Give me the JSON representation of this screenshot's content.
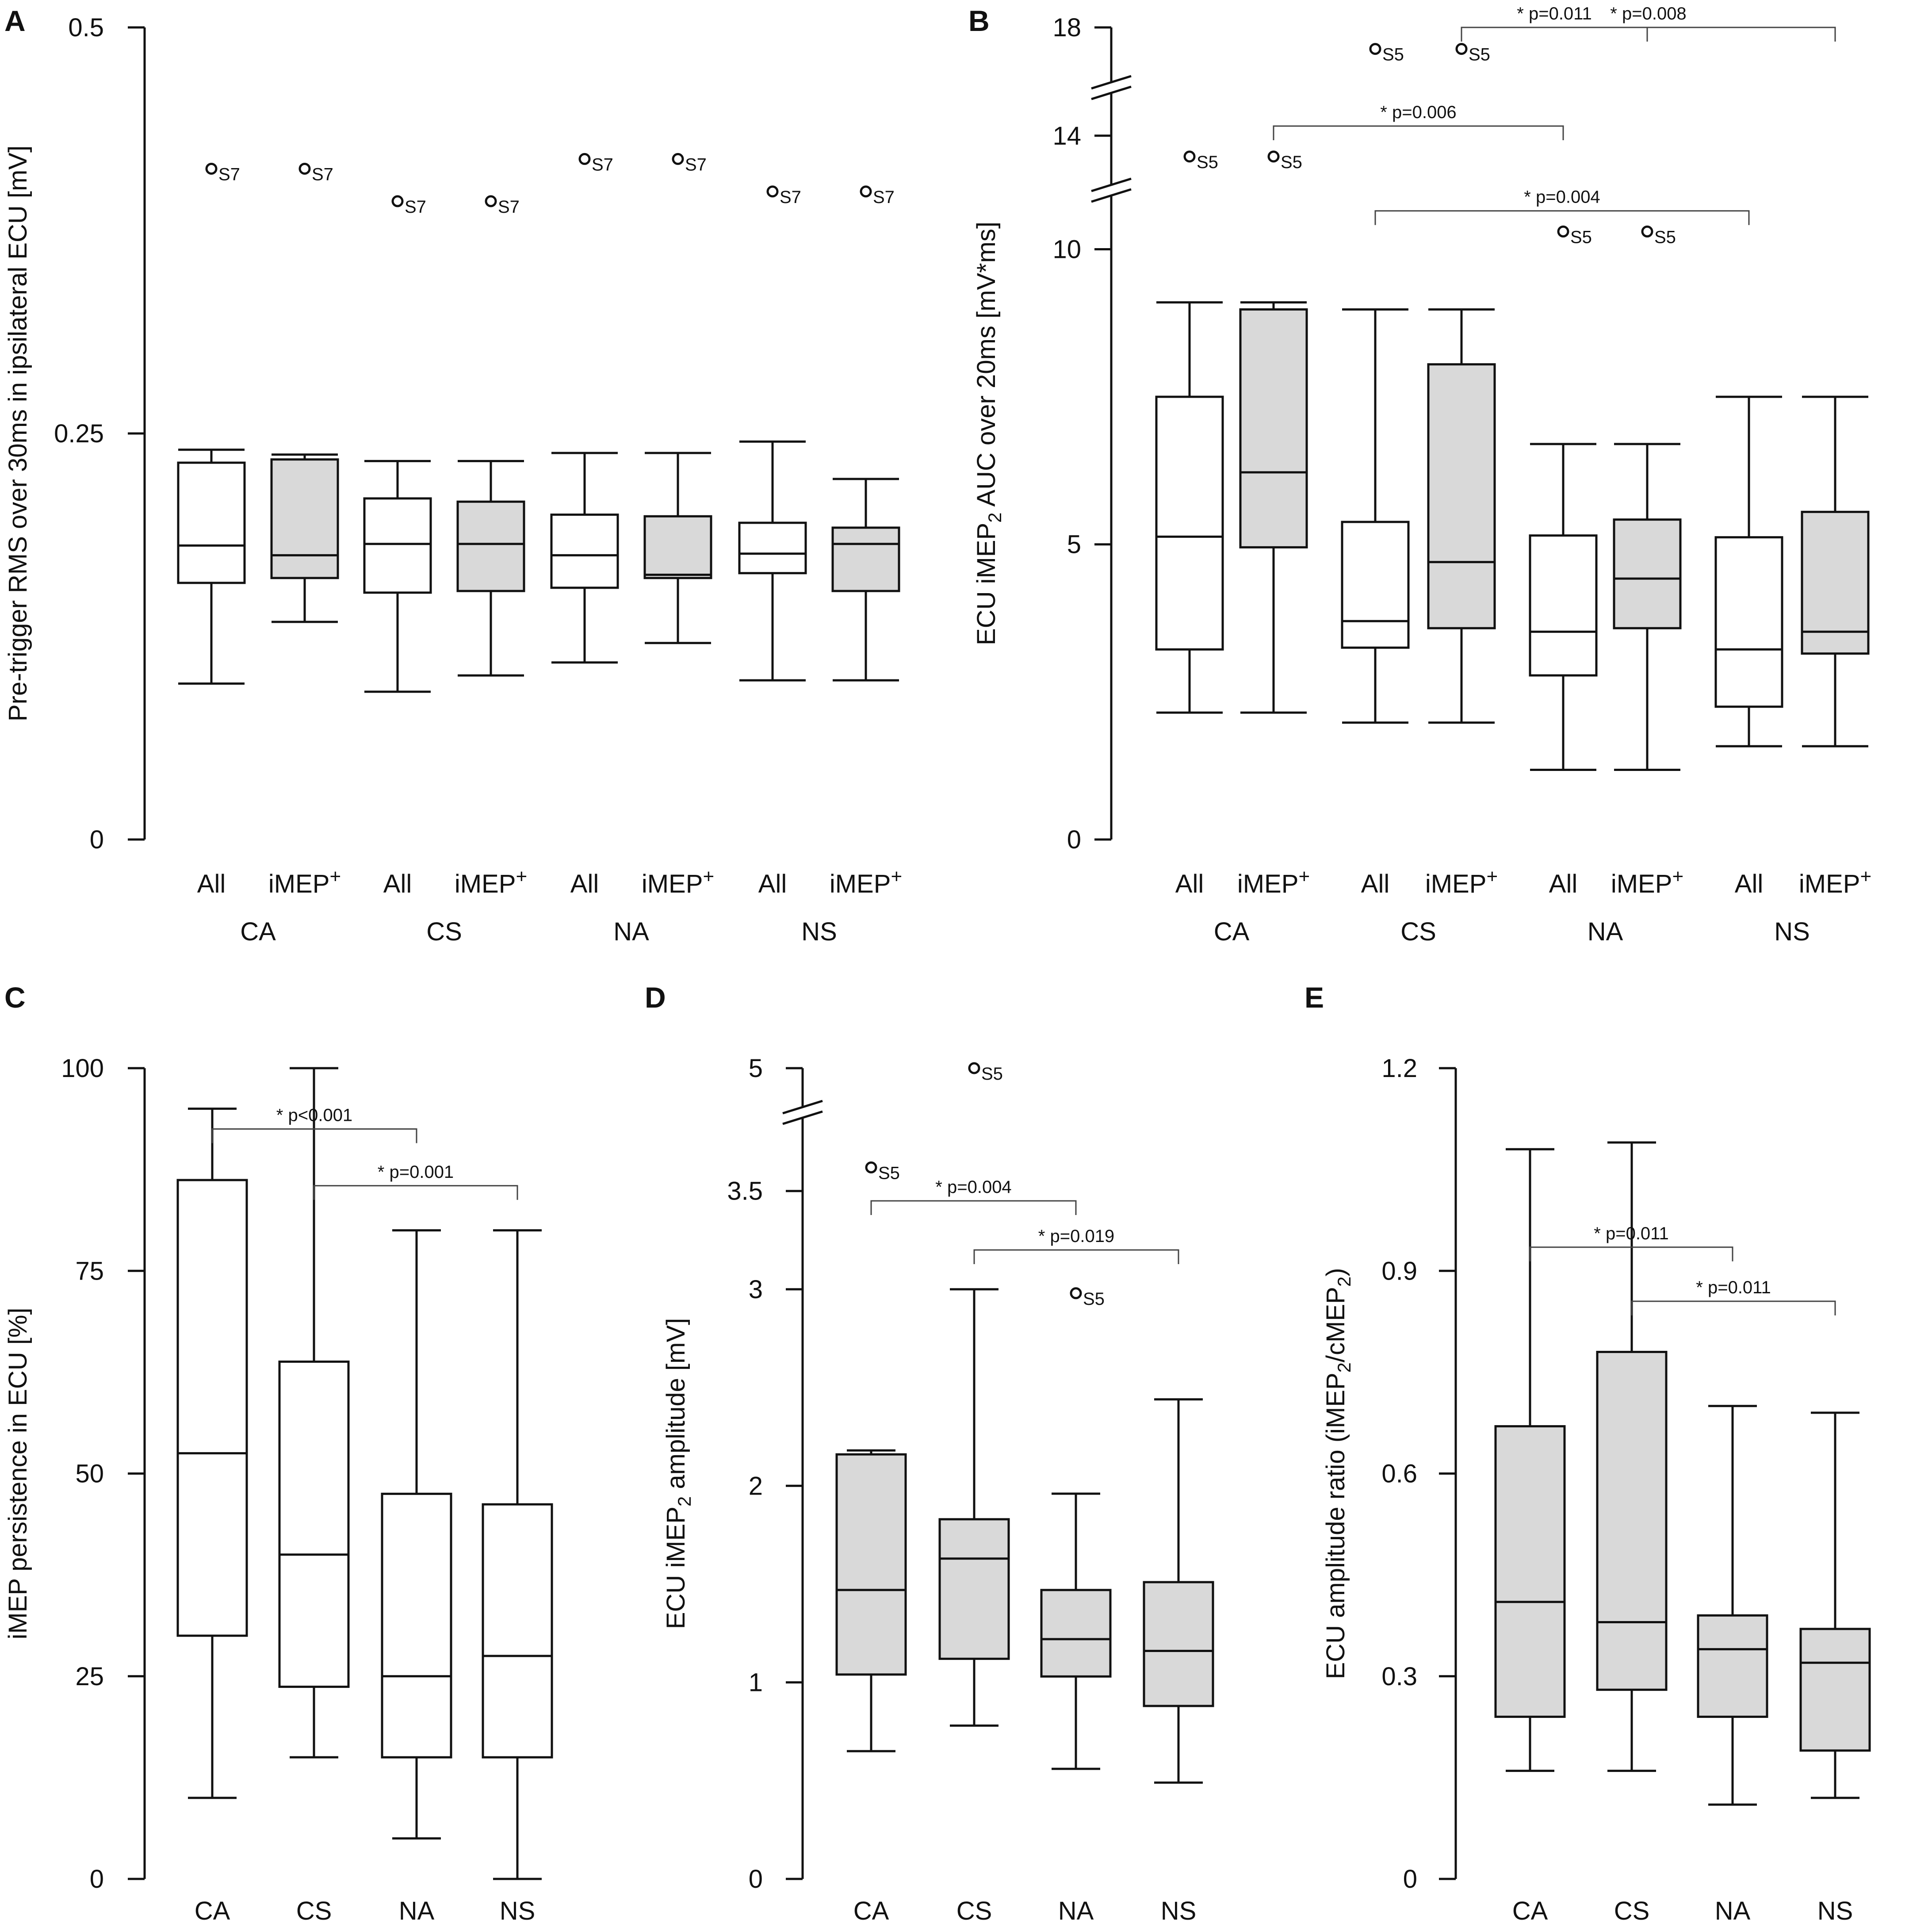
{
  "chart_data": [
    {
      "id": "A",
      "type": "boxplot",
      "panel_label": "A",
      "ylabel": "Pre-trigger RMS over 30ms in ipsilateral ECU [mV]",
      "ylim": [
        0,
        0.5
      ],
      "yticks": [
        {
          "v": 0,
          "label": "0"
        },
        {
          "v": 0.25,
          "label": "0.25"
        },
        {
          "v": 0.5,
          "label": "0.5"
        }
      ],
      "groups": [
        "CA",
        "CS",
        "NA",
        "NS"
      ],
      "subcategories": [
        "All",
        "iMEP+"
      ],
      "boxes": [
        {
          "group": "CA",
          "sub": "All",
          "fill": "#ffffff",
          "min": 0.096,
          "q1": 0.158,
          "median": 0.181,
          "q3": 0.232,
          "max": 0.24
        },
        {
          "group": "CA",
          "sub": "iMEP+",
          "fill": "#d9d9d9",
          "min": 0.134,
          "q1": 0.161,
          "median": 0.175,
          "q3": 0.234,
          "max": 0.237
        },
        {
          "group": "CS",
          "sub": "All",
          "fill": "#ffffff",
          "min": 0.091,
          "q1": 0.152,
          "median": 0.182,
          "q3": 0.21,
          "max": 0.233
        },
        {
          "group": "CS",
          "sub": "iMEP+",
          "fill": "#d9d9d9",
          "min": 0.101,
          "q1": 0.153,
          "median": 0.182,
          "q3": 0.208,
          "max": 0.233
        },
        {
          "group": "NA",
          "sub": "All",
          "fill": "#ffffff",
          "min": 0.109,
          "q1": 0.155,
          "median": 0.175,
          "q3": 0.2,
          "max": 0.238
        },
        {
          "group": "NA",
          "sub": "iMEP+",
          "fill": "#d9d9d9",
          "min": 0.121,
          "q1": 0.161,
          "median": 0.163,
          "q3": 0.199,
          "max": 0.238
        },
        {
          "group": "NS",
          "sub": "All",
          "fill": "#ffffff",
          "min": 0.098,
          "q1": 0.164,
          "median": 0.176,
          "q3": 0.195,
          "max": 0.245
        },
        {
          "group": "NS",
          "sub": "iMEP+",
          "fill": "#d9d9d9",
          "min": 0.098,
          "q1": 0.153,
          "median": 0.182,
          "q3": 0.192,
          "max": 0.222
        }
      ],
      "outliers": [
        {
          "group": "CA",
          "sub": "All",
          "value": 0.413,
          "label": "S7"
        },
        {
          "group": "CA",
          "sub": "iMEP+",
          "value": 0.413,
          "label": "S7"
        },
        {
          "group": "CS",
          "sub": "All",
          "value": 0.393,
          "label": "S7"
        },
        {
          "group": "CS",
          "sub": "iMEP+",
          "value": 0.393,
          "label": "S7"
        },
        {
          "group": "NA",
          "sub": "All",
          "value": 0.419,
          "label": "S7"
        },
        {
          "group": "NA",
          "sub": "iMEP+",
          "value": 0.419,
          "label": "S7"
        },
        {
          "group": "NS",
          "sub": "All",
          "value": 0.399,
          "label": "S7"
        },
        {
          "group": "NS",
          "sub": "iMEP+",
          "value": 0.399,
          "label": "S7"
        }
      ],
      "brackets": []
    },
    {
      "id": "B",
      "type": "boxplot",
      "panel_label": "B",
      "ylabel_parts": [
        "ECU iMEP",
        "2",
        " AUC over 20ms [mV*ms]"
      ],
      "ylim": [
        0,
        18
      ],
      "axis_breaks": [
        11,
        15.5
      ],
      "yticks": [
        {
          "v": 0,
          "label": "0"
        },
        {
          "v": 5,
          "label": "5"
        },
        {
          "v": 10,
          "label": "10"
        },
        {
          "v": 14,
          "label": "14"
        },
        {
          "v": 18,
          "label": "18"
        }
      ],
      "groups": [
        "CA",
        "CS",
        "NA",
        "NS"
      ],
      "subcategories": [
        "All",
        "iMEP+"
      ],
      "boxes": [
        {
          "group": "CA",
          "sub": "All",
          "fill": "#ffffff",
          "min": 2.15,
          "q1": 3.22,
          "median": 5.13,
          "q3": 7.5,
          "max": 9.1
        },
        {
          "group": "CA",
          "sub": "iMEP+",
          "fill": "#d9d9d9",
          "min": 2.15,
          "q1": 4.95,
          "median": 6.22,
          "q3": 8.98,
          "max": 9.1
        },
        {
          "group": "CS",
          "sub": "All",
          "fill": "#ffffff",
          "min": 1.98,
          "q1": 3.25,
          "median": 3.7,
          "q3": 5.38,
          "max": 8.98
        },
        {
          "group": "CS",
          "sub": "iMEP+",
          "fill": "#d9d9d9",
          "min": 1.98,
          "q1": 3.58,
          "median": 4.7,
          "q3": 8.05,
          "max": 8.98
        },
        {
          "group": "NA",
          "sub": "All",
          "fill": "#ffffff",
          "min": 1.18,
          "q1": 2.78,
          "median": 3.52,
          "q3": 5.15,
          "max": 6.7
        },
        {
          "group": "NA",
          "sub": "iMEP+",
          "fill": "#d9d9d9",
          "min": 1.18,
          "q1": 3.58,
          "median": 4.42,
          "q3": 5.42,
          "max": 6.7
        },
        {
          "group": "NS",
          "sub": "All",
          "fill": "#ffffff",
          "min": 1.58,
          "q1": 2.25,
          "median": 3.22,
          "q3": 5.12,
          "max": 7.5
        },
        {
          "group": "NS",
          "sub": "iMEP+",
          "fill": "#d9d9d9",
          "min": 1.58,
          "q1": 3.15,
          "median": 3.52,
          "q3": 5.55,
          "max": 7.5
        }
      ],
      "outliers": [
        {
          "group": "CA",
          "sub": "All",
          "value": 13.35,
          "label": "S5"
        },
        {
          "group": "CA",
          "sub": "iMEP+",
          "value": 13.35,
          "label": "S5"
        },
        {
          "group": "CS",
          "sub": "All",
          "value": 17.5,
          "label": "S5"
        },
        {
          "group": "CS",
          "sub": "iMEP+",
          "value": 17.5,
          "label": "S5"
        },
        {
          "group": "NA",
          "sub": "All",
          "value": 10.3,
          "label": "S5"
        },
        {
          "group": "NA",
          "sub": "iMEP+",
          "value": 10.3,
          "label": "S5"
        },
        {
          "group": "NS",
          "sub": "All",
          "value": null,
          "label": null
        },
        {
          "group": "NS",
          "sub": "iMEP+",
          "value": null,
          "label": null
        }
      ],
      "brackets": [
        {
          "from": "CS.iMEP+",
          "to": "NA.iMEP+",
          "label": "* p=0.011",
          "level": 16.05
        },
        {
          "from": "CA.iMEP+",
          "to": "NA.All",
          "label": "* p=0.006",
          "level": 14.3
        },
        {
          "from": "CS.iMEP+",
          "to": "NS.iMEP+",
          "label": "* p=0.008",
          "level": 11.1
        },
        {
          "from": "CS.All",
          "to": "NS.All",
          "label": "* p=0.004",
          "level": 10.65
        }
      ]
    },
    {
      "id": "C",
      "type": "boxplot",
      "panel_label": "C",
      "ylabel": "iMEP persistence in ECU [%]",
      "ylim": [
        0,
        100
      ],
      "yticks": [
        {
          "v": 0,
          "label": "0"
        },
        {
          "v": 25,
          "label": "25"
        },
        {
          "v": 50,
          "label": "50"
        },
        {
          "v": 75,
          "label": "75"
        },
        {
          "v": 100,
          "label": "100"
        }
      ],
      "groups": [
        "CA",
        "CS",
        "NA",
        "NS"
      ],
      "boxes": [
        {
          "group": "CA",
          "fill": "#ffffff",
          "min": 10,
          "q1": 30,
          "median": 52.5,
          "q3": 86.2,
          "max": 95
        },
        {
          "group": "CS",
          "fill": "#ffffff",
          "min": 15,
          "q1": 23.7,
          "median": 40,
          "q3": 63.8,
          "max": 100
        },
        {
          "group": "NA",
          "fill": "#ffffff",
          "min": 5,
          "q1": 15,
          "median": 25,
          "q3": 47.5,
          "max": 80
        },
        {
          "group": "NS",
          "fill": "#ffffff",
          "min": 0,
          "q1": 15,
          "median": 27.5,
          "q3": 46.2,
          "max": 80
        }
      ],
      "outliers": [],
      "brackets": [
        {
          "from": "CA",
          "to": "NA",
          "label": "* p<0.001",
          "level": 92.5
        },
        {
          "from": "CS",
          "to": "NS",
          "label": "* p=0.001",
          "level": 85.5
        }
      ]
    },
    {
      "id": "D",
      "type": "boxplot",
      "panel_label": "D",
      "ylabel_parts": [
        "ECU iMEP",
        "2",
        " amplitude [mV]"
      ],
      "ylim": [
        0,
        5
      ],
      "axis_breaks": [
        3.95
      ],
      "yticks": [
        {
          "v": 0,
          "label": "0"
        },
        {
          "v": 1,
          "label": "1"
        },
        {
          "v": 2,
          "label": "2"
        },
        {
          "v": 3,
          "label": "3"
        },
        {
          "v": 3.5,
          "label": "3.5"
        },
        {
          "v": 5,
          "label": "5"
        }
      ],
      "groups": [
        "CA",
        "CS",
        "NA",
        "NS"
      ],
      "boxes": [
        {
          "group": "CA",
          "fill": "#d9d9d9",
          "min": 0.65,
          "q1": 1.04,
          "median": 1.47,
          "q3": 2.16,
          "max": 2.18
        },
        {
          "group": "CS",
          "fill": "#d9d9d9",
          "min": 0.78,
          "q1": 1.12,
          "median": 1.63,
          "q3": 1.83,
          "max": 3.0
        },
        {
          "group": "NA",
          "fill": "#d9d9d9",
          "min": 0.56,
          "q1": 1.03,
          "median": 1.22,
          "q3": 1.47,
          "max": 1.96
        },
        {
          "group": "NS",
          "fill": "#d9d9d9",
          "min": 0.49,
          "q1": 0.88,
          "median": 1.16,
          "q3": 1.51,
          "max": 2.44
        }
      ],
      "outliers": [
        {
          "group": "CA",
          "value": 3.62,
          "label": "S5"
        },
        {
          "group": "CS",
          "value": 5.0,
          "label": "S5"
        },
        {
          "group": "NA",
          "value": 2.98,
          "label": "S5"
        }
      ],
      "brackets": [
        {
          "from": "CA",
          "to": "NA",
          "label": "* p=0.004",
          "level": 3.45
        },
        {
          "from": "CS",
          "to": "NS",
          "label": "* p=0.019",
          "level": 3.2
        }
      ]
    },
    {
      "id": "E",
      "type": "boxplot",
      "panel_label": "E",
      "ylabel_parts": [
        "ECU amplitude ratio (iMEP",
        "2",
        "/cMEP",
        "2",
        ")"
      ],
      "ylim": [
        0,
        1.2
      ],
      "yticks": [
        {
          "v": 0,
          "label": "0"
        },
        {
          "v": 0.3,
          "label": "0.3"
        },
        {
          "v": 0.6,
          "label": "0.6"
        },
        {
          "v": 0.9,
          "label": "0.9"
        },
        {
          "v": 1.2,
          "label": "1.2"
        }
      ],
      "groups": [
        "CA",
        "CS",
        "NA",
        "NS"
      ],
      "boxes": [
        {
          "group": "CA",
          "fill": "#d9d9d9",
          "min": 0.16,
          "q1": 0.24,
          "median": 0.41,
          "q3": 0.67,
          "max": 1.08
        },
        {
          "group": "CS",
          "fill": "#d9d9d9",
          "min": 0.16,
          "q1": 0.28,
          "median": 0.38,
          "q3": 0.78,
          "max": 1.09
        },
        {
          "group": "NA",
          "fill": "#d9d9d9",
          "min": 0.11,
          "q1": 0.24,
          "median": 0.34,
          "q3": 0.39,
          "max": 0.7
        },
        {
          "group": "NS",
          "fill": "#d9d9d9",
          "min": 0.12,
          "q1": 0.19,
          "median": 0.32,
          "q3": 0.37,
          "max": 0.69
        }
      ],
      "outliers": [],
      "brackets": [
        {
          "from": "CA",
          "to": "NA",
          "label": "* p=0.011",
          "level": 0.935
        },
        {
          "from": "CS",
          "to": "NS",
          "label": "* p=0.011",
          "level": 0.855
        }
      ]
    }
  ]
}
